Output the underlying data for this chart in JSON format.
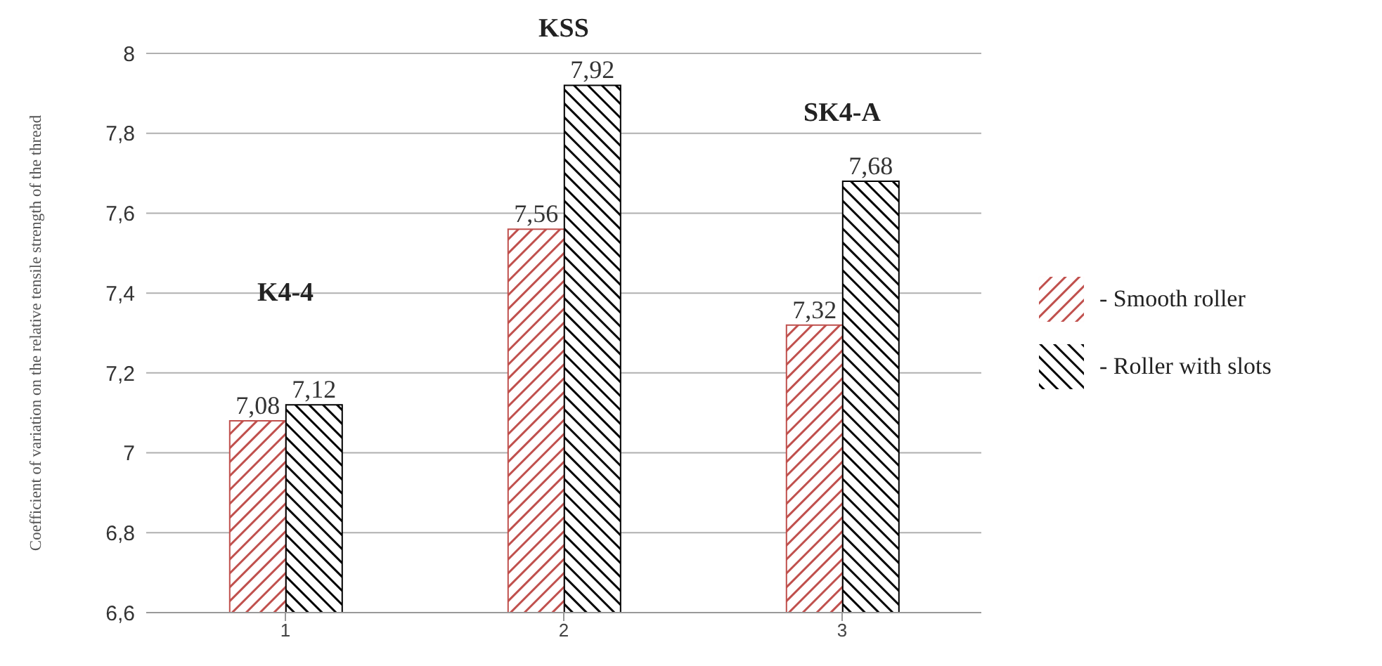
{
  "chart_data": {
    "type": "bar",
    "ylabel": "Coefficient of variation on the relative tensile strength of the thread",
    "categories": [
      "1",
      "2",
      "3"
    ],
    "series": [
      {
        "name": "- Smooth roller",
        "color": "#c0504d",
        "values": [
          7.08,
          7.56,
          7.32
        ],
        "value_labels": [
          "7,08",
          "7,56",
          "7,32"
        ]
      },
      {
        "name": "- Roller with slots",
        "color": "#000000",
        "values": [
          7.12,
          7.92,
          7.68
        ],
        "value_labels": [
          "7,12",
          "7,92",
          "7,68"
        ]
      }
    ],
    "ylim": [
      6.6,
      8
    ],
    "yticks": [
      {
        "value": 6.6,
        "label": "6,6"
      },
      {
        "value": 6.8,
        "label": "6,8"
      },
      7,
      {
        "value": 7.2,
        "label": "7,2"
      },
      {
        "value": 7.4,
        "label": "7,4"
      },
      {
        "value": 7.6,
        "label": "7,6"
      },
      {
        "value": 7.8,
        "label": "7,8"
      },
      8
    ],
    "grid": "y",
    "legend": "right",
    "annotations": [
      "K4-4",
      "KSS",
      "SK4-A"
    ]
  }
}
